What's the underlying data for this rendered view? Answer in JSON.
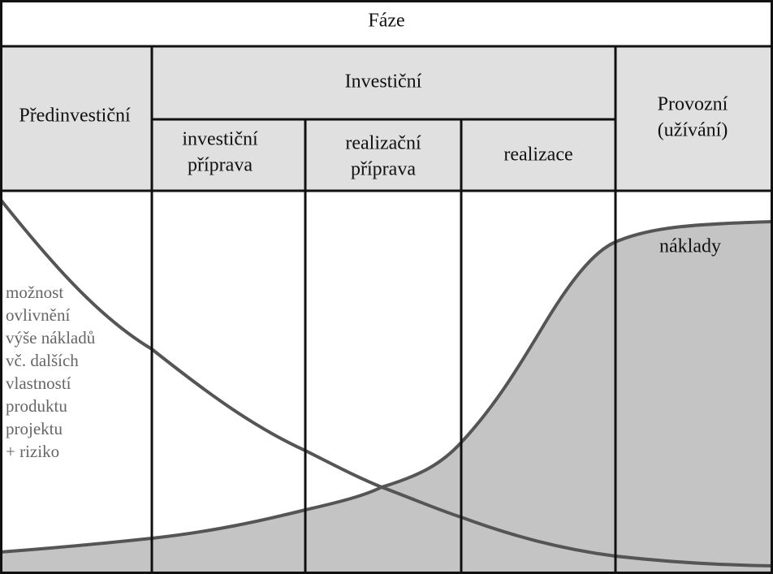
{
  "header": {
    "title": "Fáze"
  },
  "phases": {
    "pre": {
      "label": "Předinvestiční"
    },
    "investment": {
      "label": "Investiční",
      "subphases": [
        {
          "lines": [
            "investiční",
            "příprava"
          ]
        },
        {
          "lines": [
            "realizační",
            "příprava"
          ]
        },
        {
          "lines": [
            "realizace"
          ]
        }
      ]
    },
    "operation": {
      "lines": [
        "Provozní",
        "(užívání)"
      ]
    }
  },
  "curves": {
    "cost": {
      "label": "náklady"
    },
    "influence": {
      "lines": [
        "možnost",
        "ovlivnění",
        "výše nákladů",
        "vč. dalších",
        "vlastností",
        "produktu",
        "projektu",
        "+ riziko"
      ]
    }
  }
}
